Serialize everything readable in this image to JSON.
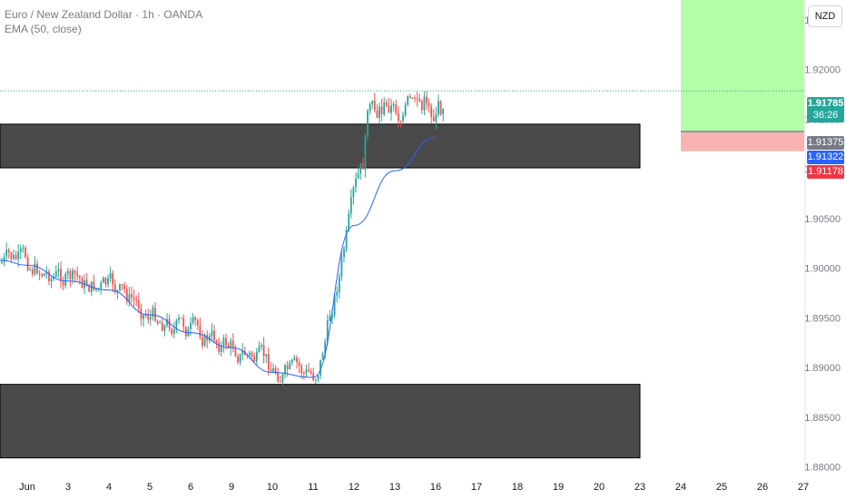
{
  "header": {
    "title": "Euro / New Zealand Dollar · 1h · OANDA",
    "indicator": "EMA (50, close)",
    "currency": "NZD"
  },
  "price_tags": {
    "last_price": "1.91785",
    "countdown": "36:26",
    "entry": "1.91375",
    "ema": "1.91322",
    "stop": "1.91178"
  },
  "colors": {
    "up": "#26a69a",
    "down": "#ef5350",
    "ema": "#2962ff",
    "zone": "#4a4a4a",
    "target_fill": "#b2ffa8",
    "stop_fill": "#f9b3b3",
    "last_price": "#26a69a",
    "ema_tag": "#2962ff",
    "stop_tag": "#f23645",
    "entry_tag": "#787b86"
  },
  "chart_data": {
    "type": "candlestick",
    "title": "Euro / New Zealand Dollar · 1h · OANDA",
    "x_axis_labels": [
      "Jun",
      "3",
      "4",
      "5",
      "6",
      "9",
      "10",
      "11",
      "12",
      "13",
      "16",
      "17",
      "18",
      "19",
      "20",
      "23",
      "24",
      "25",
      "26",
      "27"
    ],
    "y_axis_labels": [
      "1.92500",
      "1.92000",
      "1.91500",
      "1.91000",
      "1.90500",
      "1.90000",
      "1.89500",
      "1.89000",
      "1.88500",
      "1.88000"
    ],
    "ylim": [
      1.8795,
      1.927
    ],
    "ema_key_points": [
      {
        "date": "Jun 2",
        "value": 1.9003
      },
      {
        "date": "Jun 3",
        "value": 1.8987
      },
      {
        "date": "Jun 4",
        "value": 1.8978
      },
      {
        "date": "Jun 5",
        "value": 1.8953
      },
      {
        "date": "Jun 6",
        "value": 1.8935
      },
      {
        "date": "Jun 9",
        "value": 1.892
      },
      {
        "date": "Jun 10",
        "value": 1.8895
      },
      {
        "date": "Jun 11",
        "value": 1.889
      },
      {
        "date": "Jun 12",
        "value": 1.9043
      },
      {
        "date": "Jun 13",
        "value": 1.9098
      },
      {
        "date": "Jun 16",
        "value": 1.9132
      }
    ],
    "zones": [
      {
        "name": "resistance",
        "from": 1.9101,
        "to": 1.9145
      },
      {
        "name": "support",
        "from": 1.8809,
        "to": 1.8883
      }
    ],
    "position": {
      "type": "long",
      "entry": 1.91375,
      "target_top": 1.927,
      "stop": 1.91178
    },
    "last_price": 1.91785,
    "grid": false,
    "legend": "top-left"
  }
}
